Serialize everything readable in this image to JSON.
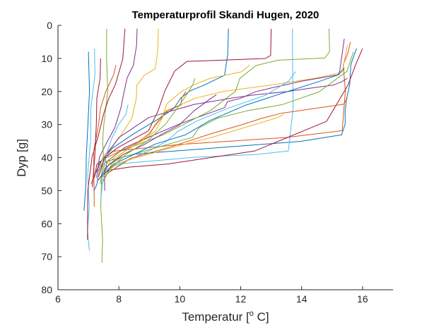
{
  "chart_data": {
    "type": "line",
    "title": "Temperaturprofil Skandi Hugen, 2020",
    "xlabel": "Temperatur [",
    "xlabel_sup": "o",
    "xlabel_end": " C]",
    "ylabel": "Dyp [g]",
    "xlim": [
      6,
      17
    ],
    "ylim": [
      0,
      80
    ],
    "y_reversed": true,
    "grid": false,
    "x_ticks": [
      6,
      8,
      10,
      12,
      14,
      16
    ],
    "y_ticks": [
      0,
      10,
      20,
      30,
      40,
      50,
      60,
      70,
      80
    ],
    "colors": [
      "#0072BD",
      "#D95319",
      "#EDB120",
      "#7E2F8E",
      "#77AC30",
      "#4DBEEE",
      "#A2142F"
    ],
    "series": [
      {
        "x": [
          15.8,
          15.6,
          15.55,
          15.5,
          15.45,
          15.4,
          15.3,
          14.0,
          11.5,
          8.5,
          7.6,
          7.4,
          7.3,
          7.25,
          7.2
        ],
        "y": [
          7,
          12,
          18,
          22,
          26,
          30,
          33,
          35,
          37,
          39,
          41,
          43,
          46,
          48,
          50
        ]
      },
      {
        "x": [
          15.6,
          15.5,
          15.4,
          15.4,
          15.4,
          15.3,
          13.5,
          10.0,
          7.8,
          7.4,
          7.2,
          7.1
        ],
        "y": [
          5,
          8,
          12,
          20,
          28,
          32,
          34,
          36,
          38,
          41,
          45,
          48
        ]
      },
      {
        "x": [
          15.5,
          15.3,
          14.5,
          13.0,
          11.5,
          10.5,
          10.0,
          9.5,
          9.2,
          9.0,
          8.2,
          7.8,
          7.6,
          7.5
        ],
        "y": [
          6,
          14,
          16,
          18,
          20,
          22,
          24,
          26,
          30,
          34,
          38,
          41,
          44,
          47
        ]
      },
      {
        "x": [
          15.4,
          15.2,
          14.0,
          13.0,
          12.5,
          12.0,
          11.6,
          11.5,
          10.0,
          8.2,
          7.6,
          7.5,
          7.5
        ],
        "y": [
          4,
          15,
          17,
          19,
          20,
          22,
          23,
          25,
          30,
          37,
          41,
          45,
          50
        ]
      },
      {
        "x": [
          14.9,
          14.9,
          14.8,
          13.2,
          12.5,
          12.0,
          11.8,
          11.0,
          9.5,
          8.0,
          7.5,
          7.4
        ],
        "y": [
          1,
          8,
          10,
          10.5,
          12,
          16,
          20,
          26,
          33,
          38,
          42,
          48
        ]
      },
      {
        "x": [
          13.7,
          13.7,
          13.7,
          13.6,
          12.5,
          10.5,
          9.0,
          8.0,
          7.5
        ],
        "y": [
          1,
          12,
          25,
          38,
          39,
          40,
          41,
          42,
          44
        ]
      },
      {
        "x": [
          13.0,
          13.0,
          12.8,
          11.5,
          10.2,
          9.8,
          9.5,
          9.3,
          9.0,
          8.0,
          7.3,
          7.2
        ],
        "y": [
          1,
          9,
          10,
          10.5,
          11,
          14,
          20,
          26,
          32,
          37,
          42,
          46
        ]
      },
      {
        "x": [
          11.6,
          11.6,
          11.5,
          10.8,
          10.3,
          10.0,
          9.8,
          9.4,
          8.5,
          7.8,
          7.4,
          7.2
        ],
        "y": [
          1,
          9,
          15,
          18,
          20,
          22,
          25,
          28,
          33,
          37,
          41,
          45
        ]
      },
      {
        "x": [
          10.2,
          10.1,
          10.0,
          9.6,
          9.4,
          9.2,
          9.0,
          8.5,
          7.6,
          7.3
        ],
        "y": [
          20,
          22,
          24,
          26,
          28,
          30,
          33,
          36,
          40,
          44
        ]
      },
      {
        "x": [
          9.3,
          9.3,
          9.2,
          8.8,
          8.6,
          8.6,
          8.4,
          8.0,
          7.5,
          7.3
        ],
        "y": [
          1,
          8,
          13,
          15,
          18,
          22,
          28,
          34,
          40,
          46
        ]
      },
      {
        "x": [
          8.6,
          8.6,
          8.5,
          8.3,
          8.2,
          8.1,
          7.9,
          7.6,
          7.4,
          7.3
        ],
        "y": [
          1,
          6,
          12,
          16,
          20,
          25,
          31,
          36,
          40,
          46
        ]
      },
      {
        "x": [
          7.6,
          7.6,
          7.6,
          7.5,
          7.5,
          7.5,
          7.4,
          7.4,
          7.5,
          7.45
        ],
        "y": [
          1,
          10,
          20,
          30,
          35,
          40,
          45,
          55,
          65,
          72
        ]
      },
      {
        "x": [
          7.2,
          7.2,
          7.1,
          7.05,
          7.0,
          7.0,
          7.0,
          7.0
        ],
        "y": [
          7,
          15,
          25,
          35,
          45,
          55,
          62,
          68
        ]
      },
      {
        "x": [
          8.2,
          8.1,
          7.9,
          7.7,
          7.5,
          7.3,
          7.1,
          7.0,
          7.0
        ],
        "y": [
          1,
          10,
          18,
          22,
          27,
          33,
          40,
          50,
          65
        ]
      },
      {
        "x": [
          7.0,
          7.0,
          6.95,
          6.9,
          6.9,
          6.85
        ],
        "y": [
          8,
          20,
          30,
          40,
          48,
          56
        ]
      },
      {
        "x": [
          7.9,
          7.8,
          7.6,
          7.4,
          7.3,
          7.2,
          7.2
        ],
        "y": [
          12,
          15,
          20,
          25,
          30,
          38,
          55
        ]
      },
      {
        "x": [
          12.3,
          12.0,
          11.0,
          10.5,
          10.0,
          9.6,
          9.4,
          9.2,
          8.6,
          7.8,
          7.4
        ],
        "y": [
          12,
          14,
          16,
          18,
          20,
          24,
          28,
          32,
          36,
          40,
          44
        ]
      },
      {
        "x": [
          15.5,
          15.3,
          15.0,
          14.2,
          13.5,
          12.5,
          11.8,
          10.5,
          9.0,
          8.0,
          7.5,
          7.3
        ],
        "y": [
          16,
          17,
          18,
          19,
          20,
          21,
          22,
          24,
          28,
          34,
          40,
          46
        ]
      },
      {
        "x": [
          15.7,
          15.5,
          14.6,
          13.4,
          12.2,
          11.2,
          10.6,
          10.4,
          9.2,
          8.1,
          7.6,
          7.4
        ],
        "y": [
          8,
          14,
          20,
          24,
          26,
          28,
          31,
          34,
          37,
          40,
          43,
          46
        ]
      },
      {
        "x": [
          13.8,
          13.6,
          12.8,
          11.6,
          10.6,
          9.9,
          9.6,
          9.0,
          8.2,
          7.6
        ],
        "y": [
          14,
          17,
          21,
          25,
          29,
          32,
          35,
          38,
          41,
          45
        ]
      },
      {
        "x": [
          16.0,
          15.8,
          15.5,
          14.8,
          12.5,
          9.6,
          8.3,
          7.7,
          7.5
        ],
        "y": [
          7,
          12,
          18,
          29,
          38,
          42,
          43,
          44,
          45
        ]
      },
      {
        "x": [
          15.4,
          15.2,
          14.6,
          13.6,
          12.2,
          11.0,
          10.2,
          9.2,
          8.5,
          7.8,
          7.4
        ],
        "y": [
          13,
          15,
          17,
          20,
          24,
          29,
          33,
          36,
          39,
          42,
          46
        ]
      },
      {
        "x": [
          15.5,
          15.4,
          14.2,
          13.3,
          12.7,
          12.1,
          11.0,
          9.6,
          8.4,
          7.6
        ],
        "y": [
          22,
          24,
          25.5,
          26.5,
          28,
          30,
          33,
          37,
          40,
          45
        ]
      },
      {
        "x": [
          13.4,
          13.2,
          12.5,
          11.8,
          11.0,
          10.1,
          9.3,
          8.6,
          7.9,
          7.5
        ],
        "y": [
          27,
          28,
          30,
          32,
          34,
          36,
          38,
          40,
          42,
          46
        ]
      },
      {
        "x": [
          11.2,
          11.0,
          10.5,
          10.0,
          9.4,
          8.8,
          8.2,
          7.7,
          7.3
        ],
        "y": [
          21,
          22,
          26,
          30,
          33,
          36,
          39,
          42,
          47
        ]
      },
      {
        "x": [
          10.5,
          10.4,
          10.2,
          9.9,
          9.5,
          8.9,
          8.2,
          7.7,
          7.4
        ],
        "y": [
          16,
          18,
          21,
          25,
          30,
          35,
          39,
          43,
          48
        ]
      },
      {
        "x": [
          8.3,
          8.2,
          8.0,
          7.8,
          7.6,
          7.5,
          7.45
        ],
        "y": [
          24,
          27,
          30,
          34,
          38,
          43,
          52
        ]
      },
      {
        "x": [
          7.4,
          7.35,
          7.3,
          7.25,
          7.2,
          7.15
        ],
        "y": [
          10,
          16,
          22,
          30,
          40,
          49
        ]
      }
    ]
  }
}
